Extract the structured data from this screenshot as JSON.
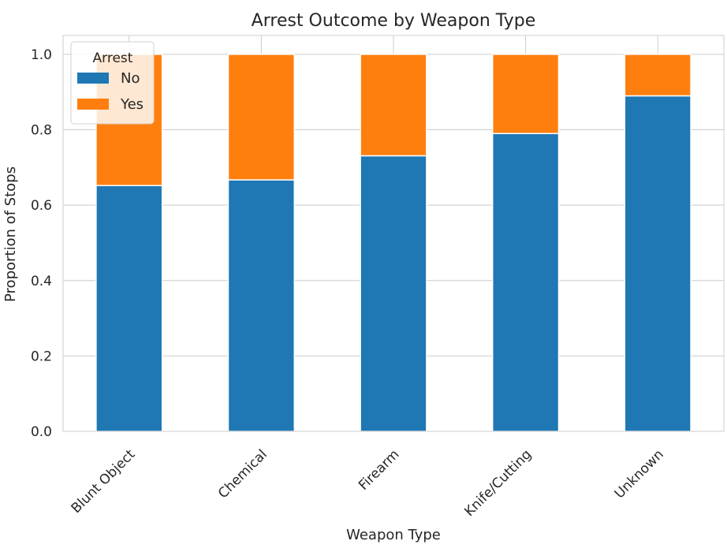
{
  "chart_data": {
    "type": "bar",
    "stacked": true,
    "title": "Arrest Outcome by Weapon Type",
    "xlabel": "Weapon Type",
    "ylabel": "Proportion of Stops",
    "categories": [
      "Blunt Object",
      "Chemical",
      "Firearm",
      "Knife/Cutting",
      "Unknown"
    ],
    "series": [
      {
        "name": "No",
        "color": "#1f77b4",
        "values": [
          0.652,
          0.667,
          0.731,
          0.79,
          0.89
        ]
      },
      {
        "name": "Yes",
        "color": "#ff7f0e",
        "values": [
          0.348,
          0.333,
          0.269,
          0.21,
          0.11
        ]
      }
    ],
    "ylim": [
      0,
      1.05
    ],
    "yticks": [
      0.0,
      0.2,
      0.4,
      0.6,
      0.8,
      1.0
    ],
    "ytick_labels": [
      "0.0",
      "0.2",
      "0.4",
      "0.6",
      "0.8",
      "1.0"
    ],
    "grid": true,
    "legend": {
      "title": "Arrest",
      "placement": "top-left"
    }
  }
}
